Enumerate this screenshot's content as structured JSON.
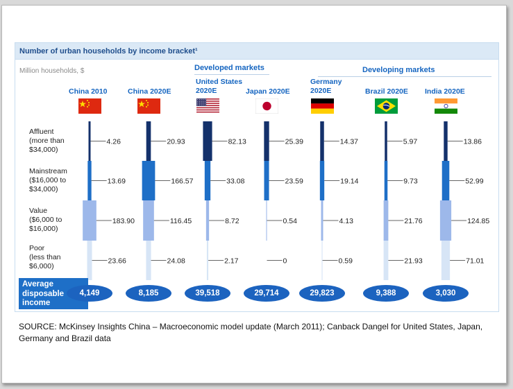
{
  "source": "SOURCE: McKinsey Insights China – Macroeconomic model update (March 2011); Canback Dangel for United States, Japan, Germany and Brazil data",
  "chart_data": {
    "type": "bar",
    "title": "Number of urban households by income bracket¹",
    "units_label": "Million households, $",
    "groups": [
      {
        "label": "Developed markets",
        "columns": [
          2,
          3,
          4
        ]
      },
      {
        "label": "Developing markets",
        "columns": [
          5,
          6
        ]
      }
    ],
    "categories": [
      "China 2010",
      "China 2020E",
      "United States 2020E",
      "Japan 2020E",
      "Germany 2020E",
      "Brazil 2020E",
      "India 2020E"
    ],
    "category_lines": [
      [
        "China 2010"
      ],
      [
        "China 2020E"
      ],
      [
        "United States",
        "2020E"
      ],
      [
        "Japan 2020E"
      ],
      [
        "Germany",
        "2020E"
      ],
      [
        "Brazil 2020E"
      ],
      [
        "India 2020E"
      ]
    ],
    "flags": [
      "china",
      "china",
      "usa",
      "japan",
      "germany",
      "brazil",
      "india"
    ],
    "brackets": [
      {
        "name": "Affluent",
        "label_lines": [
          "Affluent",
          "(more than",
          "$34,000)"
        ],
        "color": "#14316b"
      },
      {
        "name": "Mainstream",
        "label_lines": [
          "Mainstream",
          "($16,000 to",
          "$34,000)"
        ],
        "color": "#1e6fc7"
      },
      {
        "name": "Value",
        "label_lines": [
          "Value",
          "($6,000 to",
          "$16,000)"
        ],
        "color": "#9db8ea"
      },
      {
        "name": "Poor",
        "label_lines": [
          "Poor",
          "(less than",
          "$6,000)"
        ],
        "color": "#d7e5f6"
      }
    ],
    "series": [
      {
        "name": "Affluent",
        "values": [
          4.26,
          20.93,
          82.13,
          25.39,
          14.37,
          5.97,
          13.86
        ],
        "labels": [
          "4.26",
          "20.93",
          "82.13",
          "25.39",
          "14.37",
          "5.97",
          "13.86"
        ]
      },
      {
        "name": "Mainstream",
        "values": [
          13.69,
          166.57,
          33.08,
          23.59,
          19.14,
          9.73,
          52.99
        ],
        "labels": [
          "13.69",
          "166.57",
          "33.08",
          "23.59",
          "19.14",
          "9.73",
          "52.99"
        ]
      },
      {
        "name": "Value",
        "values": [
          183.9,
          116.45,
          8.72,
          0.54,
          4.13,
          21.76,
          124.85
        ],
        "labels": [
          "183.90",
          "116.45",
          "8.72",
          "0.54",
          "4.13",
          "21.76",
          "124.85"
        ]
      },
      {
        "name": "Poor",
        "values": [
          23.66,
          24.08,
          2.17,
          0,
          0.59,
          21.93,
          71.01
        ],
        "labels": [
          "23.66",
          "24.08",
          "2.17",
          "0",
          "0.59",
          "21.93",
          "71.01"
        ]
      }
    ],
    "avg_label_lines": [
      "Average",
      "disposable",
      "income"
    ],
    "avg_income": [
      "4,149",
      "8,185",
      "39,518",
      "29,714",
      "29,823",
      "9,388",
      "3,030"
    ]
  }
}
